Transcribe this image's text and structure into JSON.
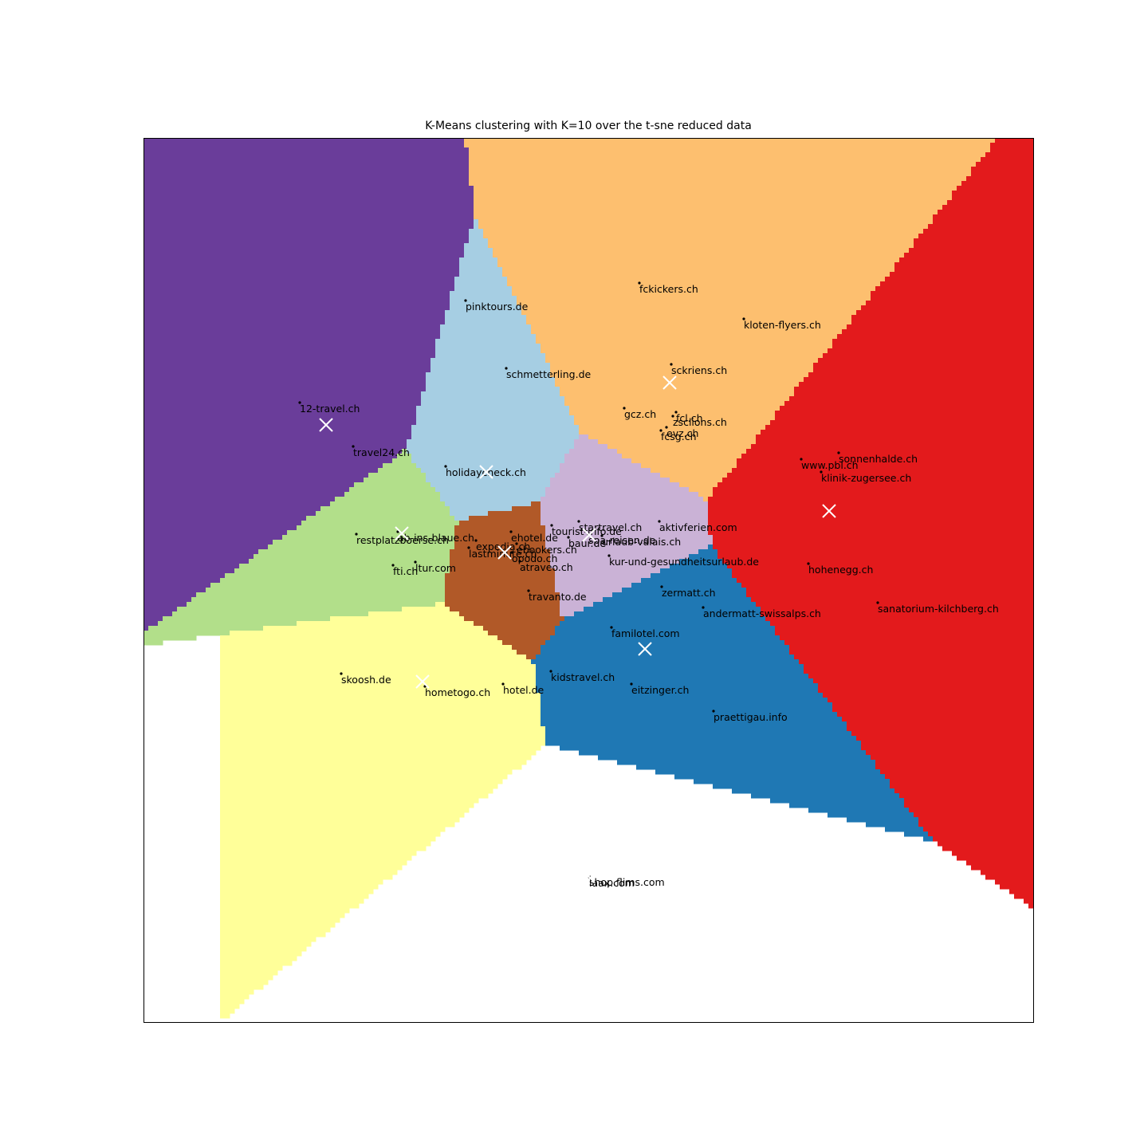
{
  "chart_data": {
    "type": "scatter",
    "title": "K-Means clustering with K=10 over the t-sne reduced data",
    "xlabel": "",
    "ylabel": "",
    "xlim": [
      0,
      1116
    ],
    "ylim": [
      0,
      1109
    ],
    "grid": false,
    "axes_ticks": false,
    "clusters": [
      {
        "id": 0,
        "color": "#a6cee3",
        "centroid": [
          430,
          690
        ]
      },
      {
        "id": 1,
        "color": "#fdbf6f",
        "centroid": [
          660,
          802
        ]
      },
      {
        "id": 2,
        "color": "#e31a1c",
        "centroid": [
          860,
          641
        ]
      },
      {
        "id": 3,
        "color": "#1f78b4",
        "centroid": [
          629,
          468
        ]
      },
      {
        "id": 4,
        "color": "#fb9a99",
        "centroid": [
          558,
          183
        ]
      },
      {
        "id": 5,
        "color": "#ffff99",
        "centroid": [
          350,
          427
        ]
      },
      {
        "id": 6,
        "color": "#b2df8a",
        "centroid": [
          324,
          613
        ]
      },
      {
        "id": 7,
        "color": "#6a3d9a",
        "centroid": [
          229,
          749
        ]
      },
      {
        "id": 8,
        "color": "#b15928",
        "centroid": [
          453,
          589
        ]
      },
      {
        "id": 9,
        "color": "#cab2d6",
        "centroid": [
          559,
          611
        ]
      }
    ],
    "points": [
      {
        "label": "pinktours.de",
        "x": 404,
        "y": 905
      },
      {
        "label": "schmetterling.de",
        "x": 455,
        "y": 820
      },
      {
        "label": "fckickers.ch",
        "x": 622,
        "y": 927
      },
      {
        "label": "kloten-flyers.ch",
        "x": 753,
        "y": 882
      },
      {
        "label": "sckriens.ch",
        "x": 662,
        "y": 825
      },
      {
        "label": "gcz.ch",
        "x": 603,
        "y": 770
      },
      {
        "label": "fcl.ch",
        "x": 668,
        "y": 765
      },
      {
        "label": "zsclions.ch",
        "x": 664,
        "y": 760
      },
      {
        "label": "evz.ch",
        "x": 656,
        "y": 746
      },
      {
        "label": "fcsg.ch",
        "x": 649,
        "y": 742
      },
      {
        "label": "12-travel.ch",
        "x": 196,
        "y": 777
      },
      {
        "label": "travel24.ch",
        "x": 263,
        "y": 722
      },
      {
        "label": "holidaycheck.ch",
        "x": 379,
        "y": 697
      },
      {
        "label": "www.pbl.ch",
        "x": 825,
        "y": 706
      },
      {
        "label": "sonnenhalde.ch",
        "x": 872,
        "y": 714
      },
      {
        "label": "klinik-zugersee.ch",
        "x": 850,
        "y": 690
      },
      {
        "label": "restplatzboerse.ch",
        "x": 267,
        "y": 612
      },
      {
        "label": "ab-ins-blaue.ch",
        "x": 319,
        "y": 615
      },
      {
        "label": "expedia.ch",
        "x": 417,
        "y": 604
      },
      {
        "label": "lastminute.ch",
        "x": 408,
        "y": 595
      },
      {
        "label": "ehotel.de",
        "x": 461,
        "y": 615
      },
      {
        "label": "ebookers.ch",
        "x": 468,
        "y": 600
      },
      {
        "label": "opodo.ch",
        "x": 462,
        "y": 589
      },
      {
        "label": "atraveo.ch",
        "x": 472,
        "y": 578
      },
      {
        "label": "tourist-info.de",
        "x": 512,
        "y": 623
      },
      {
        "label": "startravel.ch",
        "x": 546,
        "y": 628
      },
      {
        "label": "aktivferien.com",
        "x": 647,
        "y": 628
      },
      {
        "label": "baur.de",
        "x": 533,
        "y": 608
      },
      {
        "label": "spa-reisen.de",
        "x": 558,
        "y": 612
      },
      {
        "label": "urlaub-valais.ch",
        "x": 575,
        "y": 610
      },
      {
        "label": "kur-und-gesundheitsurlaub.de",
        "x": 584,
        "y": 585
      },
      {
        "label": "fti.ch",
        "x": 313,
        "y": 573
      },
      {
        "label": "ltur.com",
        "x": 341,
        "y": 577
      },
      {
        "label": "travanto.de",
        "x": 483,
        "y": 541
      },
      {
        "label": "zermatt.ch",
        "x": 650,
        "y": 546
      },
      {
        "label": "andermatt-swissalps.ch",
        "x": 702,
        "y": 520
      },
      {
        "label": "hohenegg.ch",
        "x": 834,
        "y": 575
      },
      {
        "label": "sanatorium-kilchberg.ch",
        "x": 921,
        "y": 526
      },
      {
        "label": "familotel.com",
        "x": 587,
        "y": 495
      },
      {
        "label": "kidstravel.ch",
        "x": 511,
        "y": 440
      },
      {
        "label": "eitzinger.ch",
        "x": 612,
        "y": 424
      },
      {
        "label": "praettigau.info",
        "x": 715,
        "y": 390
      },
      {
        "label": "skoosh.de",
        "x": 248,
        "y": 437
      },
      {
        "label": "hometogo.ch",
        "x": 353,
        "y": 421
      },
      {
        "label": "hotel.de",
        "x": 451,
        "y": 424
      },
      {
        "label": "shop.flims.com",
        "x": 559,
        "y": 183
      },
      {
        "label": "laax.com",
        "x": 559,
        "y": 182
      }
    ]
  }
}
